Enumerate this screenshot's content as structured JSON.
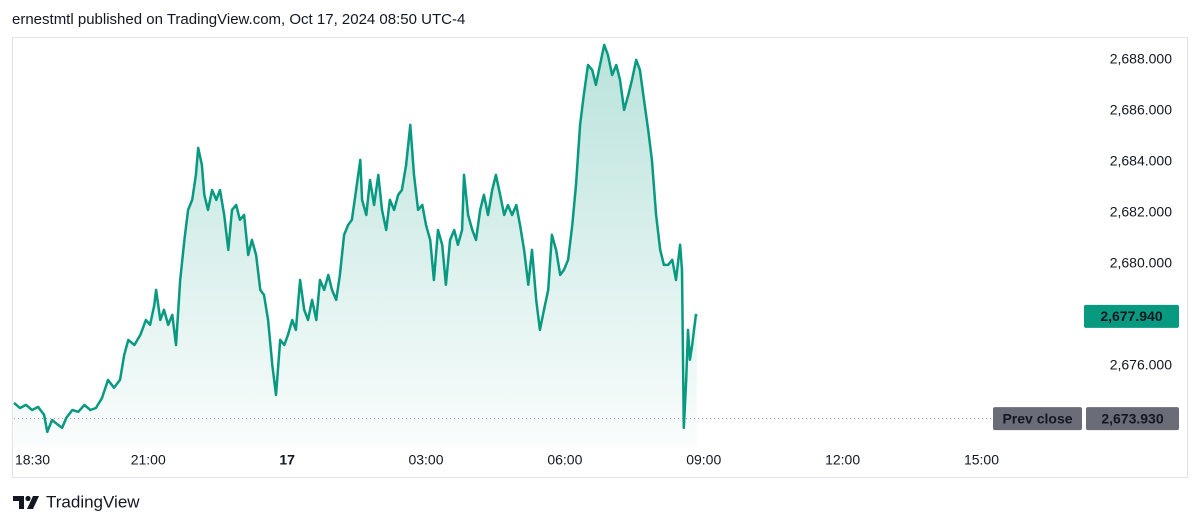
{
  "header": {
    "text": "ernestmtl published on TradingView.com, Oct 17, 2024 08:50 UTC-4"
  },
  "footer": {
    "brand": "TradingView"
  },
  "chart_data": {
    "type": "area",
    "color": "#089981",
    "x": [
      -5.9,
      -5.77,
      -5.64,
      -5.51,
      -5.38,
      -5.25,
      -5.18,
      -5.08,
      -4.95,
      -4.86,
      -4.77,
      -4.64,
      -4.51,
      -4.38,
      -4.25,
      -4.13,
      -4.0,
      -3.87,
      -3.74,
      -3.61,
      -3.52,
      -3.43,
      -3.3,
      -3.17,
      -3.05,
      -2.96,
      -2.87,
      -2.83,
      -2.74,
      -2.66,
      -2.57,
      -2.48,
      -2.4,
      -2.31,
      -2.22,
      -2.14,
      -2.05,
      -1.97,
      -1.92,
      -1.84,
      -1.79,
      -1.71,
      -1.62,
      -1.53,
      -1.45,
      -1.36,
      -1.27,
      -1.19,
      -1.1,
      -1.02,
      -0.93,
      -0.84,
      -0.76,
      -0.67,
      -0.58,
      -0.5,
      -0.41,
      -0.32,
      -0.24,
      -0.15,
      -0.06,
      0.02,
      0.11,
      0.19,
      0.28,
      0.37,
      0.45,
      0.54,
      0.63,
      0.71,
      0.8,
      0.89,
      0.97,
      1.06,
      1.14,
      1.23,
      1.32,
      1.4,
      1.49,
      1.58,
      1.62,
      1.71,
      1.79,
      1.88,
      1.97,
      2.05,
      2.14,
      2.22,
      2.31,
      2.4,
      2.48,
      2.57,
      2.66,
      2.74,
      2.83,
      2.92,
      3.0,
      3.09,
      3.17,
      3.26,
      3.35,
      3.43,
      3.52,
      3.61,
      3.69,
      3.78,
      3.82,
      3.91,
      4.0,
      4.08,
      4.17,
      4.25,
      4.34,
      4.43,
      4.51,
      4.6,
      4.69,
      4.77,
      4.86,
      4.95,
      5.03,
      5.12,
      5.21,
      5.29,
      5.38,
      5.46,
      5.55,
      5.64,
      5.72,
      5.81,
      5.9,
      5.98,
      6.07,
      6.16,
      6.24,
      6.33,
      6.41,
      6.5,
      6.59,
      6.67,
      6.76,
      6.85,
      6.93,
      7.02,
      7.11,
      7.19,
      7.28,
      7.37,
      7.45,
      7.54,
      7.62,
      7.71,
      7.8,
      7.88,
      7.97,
      8.06,
      8.14,
      8.23,
      8.32,
      8.4,
      8.49,
      8.53,
      8.57,
      8.62,
      8.66,
      8.7,
      8.75,
      8.79,
      8.83,
      8.85
    ],
    "values": [
      2674.55,
      2674.35,
      2674.47,
      2674.27,
      2674.39,
      2674.08,
      2673.41,
      2673.88,
      2673.69,
      2673.57,
      2673.96,
      2674.27,
      2674.2,
      2674.47,
      2674.27,
      2674.35,
      2674.74,
      2675.45,
      2675.14,
      2675.45,
      2676.43,
      2677.02,
      2676.82,
      2677.22,
      2677.8,
      2677.61,
      2678.39,
      2678.98,
      2677.8,
      2678.2,
      2677.61,
      2678.0,
      2676.82,
      2679.37,
      2680.94,
      2682.12,
      2682.51,
      2683.49,
      2684.55,
      2683.88,
      2682.71,
      2682.12,
      2682.9,
      2682.51,
      2682.9,
      2681.92,
      2680.55,
      2682.12,
      2682.31,
      2681.73,
      2681.92,
      2680.35,
      2680.94,
      2680.35,
      2678.98,
      2678.78,
      2677.8,
      2676.04,
      2674.86,
      2677.02,
      2676.82,
      2677.22,
      2677.8,
      2677.41,
      2679.37,
      2678.2,
      2677.8,
      2678.59,
      2677.8,
      2679.37,
      2678.98,
      2679.57,
      2678.98,
      2678.59,
      2679.57,
      2681.14,
      2681.53,
      2681.73,
      2682.9,
      2684.08,
      2682.51,
      2681.92,
      2683.29,
      2682.31,
      2683.49,
      2682.12,
      2681.33,
      2682.51,
      2682.12,
      2682.71,
      2682.9,
      2683.88,
      2685.45,
      2683.49,
      2682.12,
      2682.31,
      2681.53,
      2680.94,
      2679.37,
      2681.33,
      2680.75,
      2679.18,
      2680.94,
      2681.33,
      2680.75,
      2681.33,
      2683.49,
      2681.92,
      2681.33,
      2680.94,
      2682.12,
      2682.71,
      2681.92,
      2682.9,
      2683.49,
      2682.71,
      2681.92,
      2682.31,
      2681.92,
      2682.31,
      2681.53,
      2680.55,
      2679.18,
      2680.55,
      2678.59,
      2677.41,
      2678.2,
      2678.98,
      2681.14,
      2680.55,
      2679.57,
      2679.76,
      2680.16,
      2681.53,
      2683.1,
      2685.45,
      2686.63,
      2687.8,
      2687.61,
      2687.02,
      2687.8,
      2688.59,
      2688.2,
      2687.41,
      2687.8,
      2687.22,
      2686.04,
      2686.63,
      2687.22,
      2688.0,
      2687.61,
      2686.43,
      2685.25,
      2684.08,
      2681.92,
      2680.55,
      2679.96,
      2679.96,
      2680.16,
      2679.37,
      2680.75,
      2679.76,
      2673.57,
      2675.45,
      2677.41,
      2676.24,
      2676.82,
      2677.41,
      2678.0,
      2677.94
    ],
    "xlim": [
      -5.9,
      17.02
    ],
    "xticks": [
      {
        "value": -5.5,
        "label": "18:30"
      },
      {
        "value": -3,
        "label": "21:00"
      },
      {
        "value": 0,
        "label": "17"
      },
      {
        "value": 3,
        "label": "03:00"
      },
      {
        "value": 6,
        "label": "06:00"
      },
      {
        "value": 9,
        "label": "09:00"
      },
      {
        "value": 12,
        "label": "12:00"
      },
      {
        "value": 15,
        "label": "15:00"
      }
    ],
    "ylim": [
      2672.78,
      2688.86
    ],
    "yticks": [
      {
        "value": 2676,
        "label": "2,676.000"
      },
      {
        "value": 2680,
        "label": "2,680.000"
      },
      {
        "value": 2682,
        "label": "2,682.000"
      },
      {
        "value": 2684,
        "label": "2,684.000"
      },
      {
        "value": 2686,
        "label": "2,686.000"
      },
      {
        "value": 2688,
        "label": "2,688.000"
      }
    ],
    "last_price": {
      "value": 2677.94,
      "label": "2,677.940",
      "color": "#089981"
    },
    "prev_close": {
      "name": "Prev close",
      "value": 2673.93,
      "label": "2,673.930",
      "color": "#6a6d78"
    }
  }
}
